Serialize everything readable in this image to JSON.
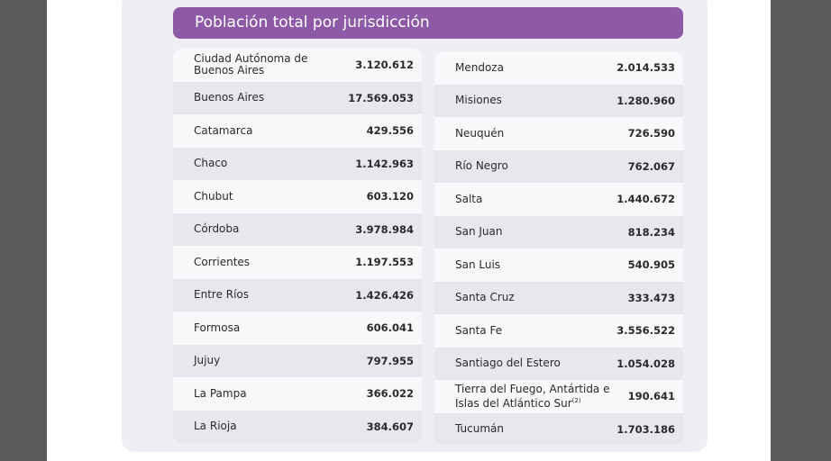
{
  "title": "Población total por jurisdicción",
  "table": {
    "left": [
      {
        "name": "Ciudad Autónoma de Buenos Aires",
        "value": "3.120.612"
      },
      {
        "name": "Buenos Aires",
        "value": "17.569.053"
      },
      {
        "name": "Catamarca",
        "value": "429.556"
      },
      {
        "name": "Chaco",
        "value": "1.142.963"
      },
      {
        "name": "Chubut",
        "value": "603.120"
      },
      {
        "name": "Córdoba",
        "value": "3.978.984"
      },
      {
        "name": "Corrientes",
        "value": "1.197.553"
      },
      {
        "name": "Entre Ríos",
        "value": "1.426.426"
      },
      {
        "name": "Formosa",
        "value": "606.041"
      },
      {
        "name": "Jujuy",
        "value": "797.955"
      },
      {
        "name": "La Pampa",
        "value": "366.022"
      },
      {
        "name": "La Rioja",
        "value": "384.607"
      }
    ],
    "right": [
      {
        "name": "Mendoza",
        "value": "2.014.533"
      },
      {
        "name": "Misiones",
        "value": "1.280.960"
      },
      {
        "name": "Neuquén",
        "value": "726.590"
      },
      {
        "name": "Río Negro",
        "value": "762.067"
      },
      {
        "name": "Salta",
        "value": "1.440.672"
      },
      {
        "name": "San Juan",
        "value": "818.234"
      },
      {
        "name": "San Luis",
        "value": "540.905"
      },
      {
        "name": "Santa Cruz",
        "value": "333.473"
      },
      {
        "name": "Santa Fe",
        "value": "3.556.522"
      },
      {
        "name": "Santiago del Estero",
        "value": "1.054.028"
      },
      {
        "name": "Tierra del Fuego, Antártida e Islas del Atlántico Sur",
        "note": "(2)",
        "value": "190.641"
      },
      {
        "name": "Tucumán",
        "value": "1.703.186"
      }
    ]
  }
}
